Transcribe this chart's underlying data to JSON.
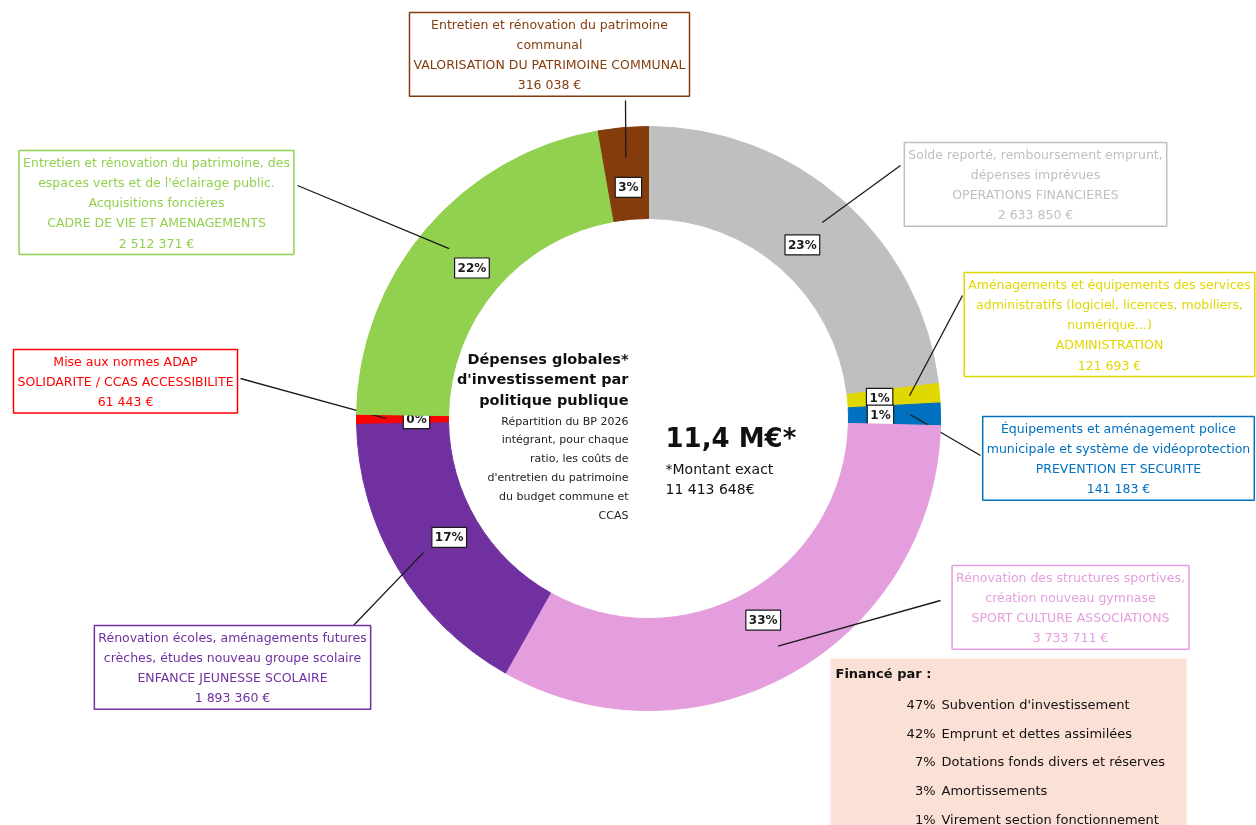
{
  "chart_data": {
    "type": "donut",
    "title": "Dépenses globales*\nd'investissement par\npolitique publique",
    "subtitle": "Répartition du BP 2026\nintégrant, pour chaque\nratio, les coûts de\nd'entretien du patrimoine\ndu budget commune et\nCCAS",
    "categories": [
      "Solde reporté, remboursement emprunt,\ndépenses imprévues\nOPERATIONS FINANCIERES\n2 633 850 €",
      "Aménagements et équipements des services\nadministratifs (logiciel, licences, mobiliers,\nnumérique...)\nADMINISTRATION\n121 693 €",
      "Équipements et aménagement police\nmunicipale et système de vidéoprotection\nPREVENTION ET SECURITE\n141 183 €",
      "Rénovation des structures sportives,\ncréation nouveau gymnase\nSPORT CULTURE ASSOCIATIONS\n3 733 711 €",
      "Rénovation écoles, aménagements futures\ncrèches, études nouveau groupe scolaire\nENFANCE JEUNESSE SCOLAIRE\n1 893 360 €",
      "Mise aux normes ADAP\nSOLIDARITE / CCAS ACCESSIBILITE\n61 443 €",
      "Entretien et rénovation du patrimoine, des\nespaces verts et de l'éclairage public.\nAcquisitions foncières\nCADRE DE VIE ET AMENAGEMENTS\n2 512 371 €",
      "Entretien et rénovation du patrimoine\ncommunal\nVALORISATION DU PATRIMOINE COMMUNAL\n316 038 €"
    ],
    "values": [
      23.08,
      1.07,
      1.24,
      32.76,
      16.59,
      0.49,
      22.01,
      2.76
    ],
    "colors": [
      "#bfbfbf",
      "#e0d800",
      "#0070c0",
      "#e49edd",
      "#7030a0",
      "#ff0000",
      "#92d050",
      "#843c0c"
    ],
    "value_labels": [
      "23%",
      "1%",
      "1%",
      "33%",
      "17%",
      "0%",
      "22%",
      "3%"
    ],
    "annotations": [
      "11,4 M€*",
      "*Montant exact\n11 413 648€",
      "Financé par :",
      "47% Subvention d'investissement",
      "42% Emprunt et dettes assimilées",
      "7% Dotations fonds divers et réserves",
      "3% Amortissements",
      "1% Virement section fonctionnement"
    ]
  }
}
